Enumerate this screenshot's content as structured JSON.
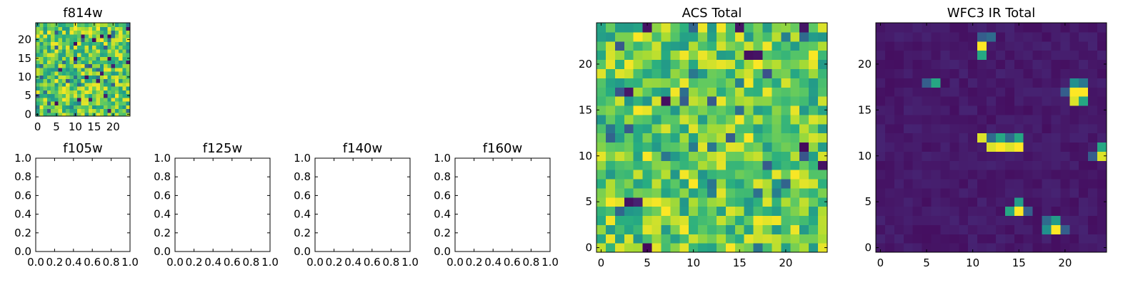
{
  "chart_data": [
    {
      "id": "f814w",
      "type": "heatmap",
      "title": "f814w",
      "colormap": "viridis",
      "grid_size": 25,
      "generator": "texture",
      "seed": 814,
      "xlim": [
        -0.5,
        24.5
      ],
      "ylim": [
        -0.5,
        24.5
      ],
      "xticks": [
        0,
        5,
        10,
        15,
        20
      ],
      "yticks": [
        0,
        5,
        10,
        15,
        20
      ]
    },
    {
      "id": "f105w",
      "type": "heatmap",
      "title": "f105w",
      "empty": true,
      "xlim": [
        0,
        1
      ],
      "ylim": [
        0,
        1
      ],
      "xticks": [
        "0.0",
        "0.2",
        "0.4",
        "0.6",
        "0.8",
        "1.0"
      ],
      "yticks": [
        "0.0",
        "0.2",
        "0.4",
        "0.6",
        "0.8",
        "1.0"
      ]
    },
    {
      "id": "f125w",
      "type": "heatmap",
      "title": "f125w",
      "empty": true,
      "xlim": [
        0,
        1
      ],
      "ylim": [
        0,
        1
      ],
      "xticks": [
        "0.0",
        "0.2",
        "0.4",
        "0.6",
        "0.8",
        "1.0"
      ],
      "yticks": [
        "0.0",
        "0.2",
        "0.4",
        "0.6",
        "0.8",
        "1.0"
      ]
    },
    {
      "id": "f140w",
      "type": "heatmap",
      "title": "f140w",
      "empty": true,
      "xlim": [
        0,
        1
      ],
      "ylim": [
        0,
        1
      ],
      "xticks": [
        "0.0",
        "0.2",
        "0.4",
        "0.6",
        "0.8",
        "1.0"
      ],
      "yticks": [
        "0.0",
        "0.2",
        "0.4",
        "0.6",
        "0.8",
        "1.0"
      ]
    },
    {
      "id": "f160w",
      "type": "heatmap",
      "title": "f160w",
      "empty": true,
      "xlim": [
        0,
        1
      ],
      "ylim": [
        0,
        1
      ],
      "xticks": [
        "0.0",
        "0.2",
        "0.4",
        "0.6",
        "0.8",
        "1.0"
      ],
      "yticks": [
        "0.0",
        "0.2",
        "0.4",
        "0.6",
        "0.8",
        "1.0"
      ]
    },
    {
      "id": "acs-total",
      "type": "heatmap",
      "title": "ACS Total",
      "colormap": "viridis",
      "grid_size": 25,
      "generator": "texture",
      "seed": 2718,
      "xlim": [
        -0.5,
        24.5
      ],
      "ylim": [
        -0.5,
        24.5
      ],
      "xticks": [
        0,
        5,
        10,
        15,
        20
      ],
      "yticks": [
        0,
        5,
        10,
        15,
        20
      ]
    },
    {
      "id": "wfc3-ir-total",
      "type": "heatmap",
      "title": "WFC3 IR Total",
      "colormap": "viridis",
      "grid_size": 25,
      "generator": "sources",
      "seed": 3141,
      "background": [
        0.04,
        0.1
      ],
      "sources": [
        {
          "x": 11,
          "y": 22,
          "value": 1.0
        },
        {
          "x": 11,
          "y": 21,
          "value": 0.6
        },
        {
          "x": 11,
          "y": 23,
          "value": 0.3
        },
        {
          "x": 12,
          "y": 23,
          "value": 0.35
        },
        {
          "x": 6,
          "y": 18,
          "value": 0.6
        },
        {
          "x": 5,
          "y": 18,
          "value": 0.3
        },
        {
          "x": 21,
          "y": 17,
          "value": 1.0
        },
        {
          "x": 22,
          "y": 17,
          "value": 1.0
        },
        {
          "x": 21,
          "y": 16,
          "value": 0.95
        },
        {
          "x": 22,
          "y": 16,
          "value": 0.6
        },
        {
          "x": 21,
          "y": 18,
          "value": 0.5
        },
        {
          "x": 22,
          "y": 18,
          "value": 0.4
        },
        {
          "x": 20,
          "y": 17,
          "value": 0.3
        },
        {
          "x": 11,
          "y": 12,
          "value": 0.95
        },
        {
          "x": 12,
          "y": 11,
          "value": 0.95
        },
        {
          "x": 13,
          "y": 11,
          "value": 1.0
        },
        {
          "x": 14,
          "y": 11,
          "value": 0.95
        },
        {
          "x": 15,
          "y": 12,
          "value": 0.6
        },
        {
          "x": 15,
          "y": 11,
          "value": 1.0
        },
        {
          "x": 13,
          "y": 12,
          "value": 0.6
        },
        {
          "x": 12,
          "y": 12,
          "value": 0.35
        },
        {
          "x": 14,
          "y": 12,
          "value": 0.35
        },
        {
          "x": 24,
          "y": 11,
          "value": 0.6
        },
        {
          "x": 24,
          "y": 10,
          "value": 0.95
        },
        {
          "x": 23,
          "y": 10,
          "value": 0.3
        },
        {
          "x": 15,
          "y": 5,
          "value": 0.55
        },
        {
          "x": 14,
          "y": 4,
          "value": 0.6
        },
        {
          "x": 15,
          "y": 4,
          "value": 1.0
        },
        {
          "x": 16,
          "y": 4,
          "value": 0.3
        },
        {
          "x": 19,
          "y": 3,
          "value": 0.55
        },
        {
          "x": 19,
          "y": 2,
          "value": 1.0
        },
        {
          "x": 18,
          "y": 2,
          "value": 0.5
        },
        {
          "x": 18,
          "y": 3,
          "value": 0.35
        },
        {
          "x": 20,
          "y": 2,
          "value": 0.3
        }
      ],
      "xlim": [
        -0.5,
        24.5
      ],
      "ylim": [
        -0.5,
        24.5
      ],
      "xticks": [
        0,
        5,
        10,
        15,
        20
      ],
      "yticks": [
        0,
        5,
        10,
        15,
        20
      ]
    }
  ]
}
